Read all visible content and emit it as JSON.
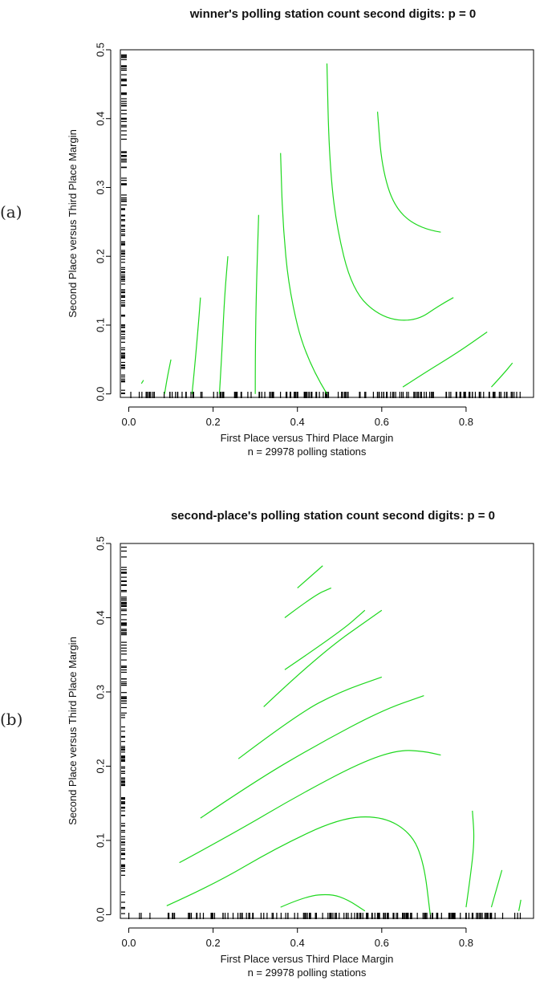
{
  "chart_data": [
    {
      "panel_label": "(a)",
      "type": "contour",
      "title": "winner's polling station count second digits: p = 0",
      "xlabel": "First Place versus Third Place Margin",
      "subtitle": "n = 29978 polling stations",
      "ylabel": "Second Place versus Third Place Margin",
      "xlim": [
        -0.02,
        0.96
      ],
      "ylim": [
        -0.005,
        0.5
      ],
      "xticks": [
        "0.0",
        "0.2",
        "0.4",
        "0.6",
        "0.8"
      ],
      "yticks": [
        "0.0",
        "0.1",
        "0.2",
        "0.3",
        "0.4",
        "0.5"
      ],
      "contour_color": "#1ed81e",
      "contours": [
        {
          "points": [
            [
              0.03,
              0.015
            ],
            [
              0.035,
              0.02
            ]
          ]
        },
        {
          "points": [
            [
              0.085,
              0.0
            ],
            [
              0.09,
              0.02
            ],
            [
              0.1,
              0.05
            ]
          ]
        },
        {
          "points": [
            [
              0.15,
              0.0
            ],
            [
              0.155,
              0.03
            ],
            [
              0.165,
              0.1
            ],
            [
              0.17,
              0.14
            ]
          ]
        },
        {
          "points": [
            [
              0.215,
              0.0
            ],
            [
              0.22,
              0.05
            ],
            [
              0.227,
              0.14
            ],
            [
              0.235,
              0.2
            ]
          ]
        },
        {
          "points": [
            [
              0.3,
              0.0
            ],
            [
              0.3,
              0.05
            ],
            [
              0.302,
              0.14
            ],
            [
              0.308,
              0.26
            ]
          ]
        },
        {
          "points": [
            [
              0.47,
              0.0
            ],
            [
              0.42,
              0.05
            ],
            [
              0.38,
              0.15
            ],
            [
              0.365,
              0.25
            ],
            [
              0.36,
              0.35
            ]
          ]
        },
        {
          "points": [
            [
              0.77,
              0.14
            ],
            [
              0.74,
              0.13
            ],
            [
              0.68,
              0.105
            ],
            [
              0.6,
              0.11
            ],
            [
              0.53,
              0.15
            ],
            [
              0.49,
              0.25
            ],
            [
              0.475,
              0.35
            ],
            [
              0.47,
              0.48
            ]
          ]
        },
        {
          "points": [
            [
              0.74,
              0.235
            ],
            [
              0.69,
              0.24
            ],
            [
              0.63,
              0.27
            ],
            [
              0.6,
              0.33
            ],
            [
              0.59,
              0.41
            ]
          ]
        },
        {
          "points": [
            [
              0.65,
              0.01
            ],
            [
              0.7,
              0.03
            ],
            [
              0.78,
              0.06
            ],
            [
              0.85,
              0.09
            ]
          ]
        },
        {
          "points": [
            [
              0.86,
              0.01
            ],
            [
              0.89,
              0.03
            ],
            [
              0.91,
              0.045
            ]
          ]
        }
      ]
    },
    {
      "panel_label": "(b)",
      "type": "contour",
      "title": "second-place's polling station count second digits: p = 0",
      "xlabel": "First Place versus Third Place Margin",
      "subtitle": "n = 29978 polling stations",
      "ylabel": "Second Place versus Third Place Margin",
      "xlim": [
        -0.02,
        0.96
      ],
      "ylim": [
        -0.005,
        0.5
      ],
      "xticks": [
        "0.0",
        "0.2",
        "0.4",
        "0.6",
        "0.8"
      ],
      "yticks": [
        "0.0",
        "0.1",
        "0.2",
        "0.3",
        "0.4",
        "0.5"
      ],
      "contour_color": "#1ed81e",
      "contours": [
        {
          "points": [
            [
              0.09,
              0.012
            ],
            [
              0.2,
              0.04
            ],
            [
              0.35,
              0.09
            ],
            [
              0.5,
              0.13
            ],
            [
              0.6,
              0.133
            ],
            [
              0.67,
              0.11
            ],
            [
              0.7,
              0.07
            ],
            [
              0.715,
              0.0
            ]
          ]
        },
        {
          "points": [
            [
              0.12,
              0.07
            ],
            [
              0.25,
              0.11
            ],
            [
              0.4,
              0.16
            ],
            [
              0.55,
              0.205
            ],
            [
              0.64,
              0.222
            ],
            [
              0.7,
              0.22
            ],
            [
              0.74,
              0.215
            ]
          ]
        },
        {
          "points": [
            [
              0.17,
              0.13
            ],
            [
              0.3,
              0.18
            ],
            [
              0.45,
              0.23
            ],
            [
              0.6,
              0.275
            ],
            [
              0.7,
              0.295
            ]
          ]
        },
        {
          "points": [
            [
              0.26,
              0.21
            ],
            [
              0.4,
              0.27
            ],
            [
              0.5,
              0.3
            ],
            [
              0.6,
              0.32
            ]
          ]
        },
        {
          "points": [
            [
              0.32,
              0.28
            ],
            [
              0.45,
              0.35
            ],
            [
              0.6,
              0.41
            ]
          ]
        },
        {
          "points": [
            [
              0.37,
              0.33
            ],
            [
              0.5,
              0.38
            ],
            [
              0.56,
              0.41
            ]
          ]
        },
        {
          "points": [
            [
              0.37,
              0.4
            ],
            [
              0.44,
              0.43
            ],
            [
              0.48,
              0.44
            ]
          ]
        },
        {
          "points": [
            [
              0.4,
              0.44
            ],
            [
              0.46,
              0.47
            ]
          ]
        },
        {
          "points": [
            [
              0.36,
              0.01
            ],
            [
              0.42,
              0.025
            ],
            [
              0.48,
              0.028
            ],
            [
              0.52,
              0.02
            ],
            [
              0.56,
              0.005
            ]
          ]
        },
        {
          "points": [
            [
              0.8,
              0.01
            ],
            [
              0.81,
              0.05
            ],
            [
              0.82,
              0.1
            ],
            [
              0.815,
              0.14
            ]
          ]
        },
        {
          "points": [
            [
              0.86,
              0.01
            ],
            [
              0.875,
              0.04
            ],
            [
              0.885,
              0.06
            ]
          ]
        },
        {
          "points": [
            [
              0.925,
              0.005
            ],
            [
              0.93,
              0.02
            ]
          ]
        }
      ]
    }
  ]
}
